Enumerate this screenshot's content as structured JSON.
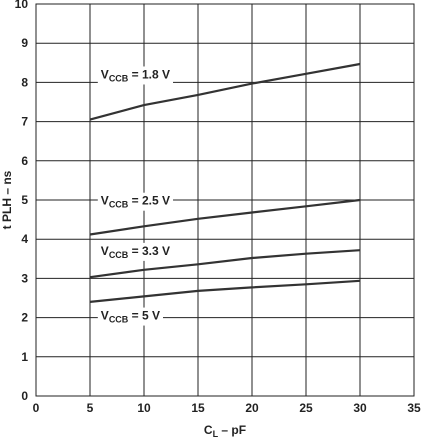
{
  "chart_data": {
    "type": "line",
    "xlabel_main": "C",
    "xlabel_sub": "L",
    "xlabel_tail": " – pF",
    "ylabel": "t PLH – ns",
    "xlim": [
      0,
      35
    ],
    "ylim": [
      0,
      10
    ],
    "x_ticks": [
      0,
      5,
      10,
      15,
      20,
      25,
      30,
      35
    ],
    "y_ticks": [
      0,
      1,
      2,
      3,
      4,
      5,
      6,
      7,
      8,
      9,
      10
    ],
    "grid": true,
    "line_color": "#333333",
    "grid_color": "#222222",
    "series": [
      {
        "label_main": "V",
        "label_sub": "CCB",
        "label_tail": " = 1.8 V",
        "label_anchor": [
          6.0,
          8.1
        ],
        "x": [
          5,
          10,
          15,
          20,
          25,
          30
        ],
        "y": [
          7.05,
          7.42,
          7.68,
          7.97,
          8.22,
          8.47
        ]
      },
      {
        "label_main": "V",
        "label_sub": "CCB",
        "label_tail": " = 2.5 V",
        "label_anchor": [
          6.0,
          4.88
        ],
        "x": [
          5,
          10,
          15,
          20,
          25,
          30
        ],
        "y": [
          4.12,
          4.33,
          4.52,
          4.68,
          4.84,
          5.0
        ]
      },
      {
        "label_main": "V",
        "label_sub": "CCB",
        "label_tail": " = 3.3 V",
        "label_anchor": [
          6.0,
          3.6
        ],
        "x": [
          5,
          10,
          15,
          20,
          25,
          30
        ],
        "y": [
          3.03,
          3.22,
          3.36,
          3.52,
          3.63,
          3.72
        ]
      },
      {
        "label_main": "V",
        "label_sub": "CCB",
        "label_tail": " = 5 V",
        "label_anchor": [
          6.0,
          1.95
        ],
        "x": [
          5,
          10,
          15,
          20,
          25,
          30
        ],
        "y": [
          2.4,
          2.54,
          2.68,
          2.77,
          2.85,
          2.94
        ]
      }
    ]
  }
}
